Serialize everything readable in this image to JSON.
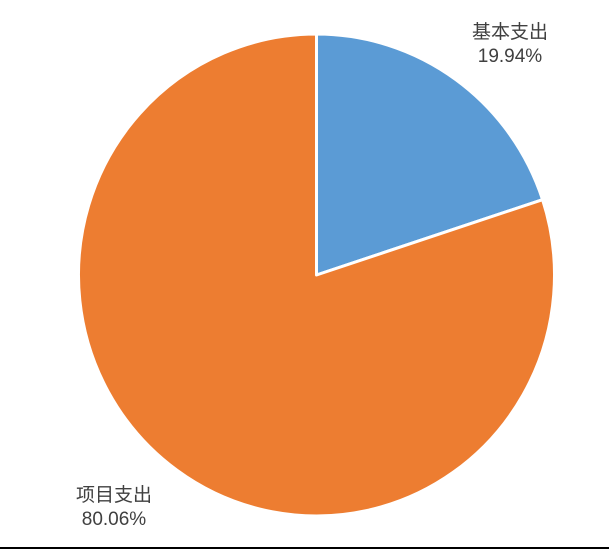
{
  "page": {
    "background": "#ffffff",
    "bottom_rule_color": "#000000"
  },
  "chart_data": {
    "type": "pie",
    "title": "",
    "categories": [
      "基本支出",
      "项目支出"
    ],
    "values": [
      19.94,
      80.06
    ],
    "slices": [
      {
        "label": "基本支出",
        "value": 19.94,
        "pct_label": "19.94%",
        "color": "#5B9BD5"
      },
      {
        "label": "项目支出",
        "value": 80.06,
        "pct_label": "80.06%",
        "color": "#ED7D31"
      }
    ],
    "start_angle_deg": 0,
    "direction": "clockwise",
    "slice_border_color": "#FFFFFF",
    "slice_border_width": 3,
    "labels_position": "outside",
    "label_color": "#404040",
    "legend": "none",
    "grid": "off"
  }
}
